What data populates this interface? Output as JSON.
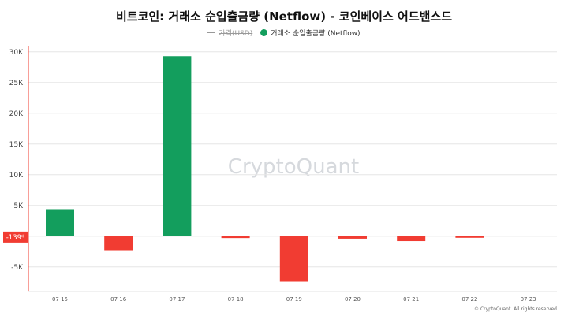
{
  "title": "비트코인: 거래소 순입출금량 (Netflow) - 코인베이스 어드밴스드",
  "legend": {
    "price_label": "가격(USD)",
    "netflow_label": "거래소 순입출금량 (Netflow)"
  },
  "watermark": "CryptoQuant",
  "copyright": "© CryptoQuant. All rights reserved",
  "colors": {
    "positive": "#139e5d",
    "negative": "#f13c32",
    "axis_accent": "#f13c32",
    "legend_dot": "#139e5d"
  },
  "chart_data": {
    "type": "bar",
    "title": "비트코인: 거래소 순입출금량 (Netflow) - 코인베이스 어드밴스드",
    "categories": [
      "07 15",
      "07 16",
      "07 17",
      "07 18",
      "07 19",
      "07 20",
      "07 21",
      "07 22",
      "07 23"
    ],
    "series": [
      {
        "name": "거래소 순입출금량 (Netflow)",
        "values": [
          4400,
          -2400,
          29300,
          -300,
          -7400,
          -400,
          -800,
          -139,
          null
        ]
      }
    ],
    "y_ticks": [
      30000,
      25000,
      20000,
      15000,
      10000,
      5000,
      -5000
    ],
    "y_tick_labels": [
      "30K",
      "25K",
      "20K",
      "15K",
      "10K",
      "5K",
      "-5K"
    ],
    "ylim": [
      -9000,
      31000
    ],
    "current_value_label": "-139*",
    "grid": true,
    "legend_position": "top-center"
  }
}
